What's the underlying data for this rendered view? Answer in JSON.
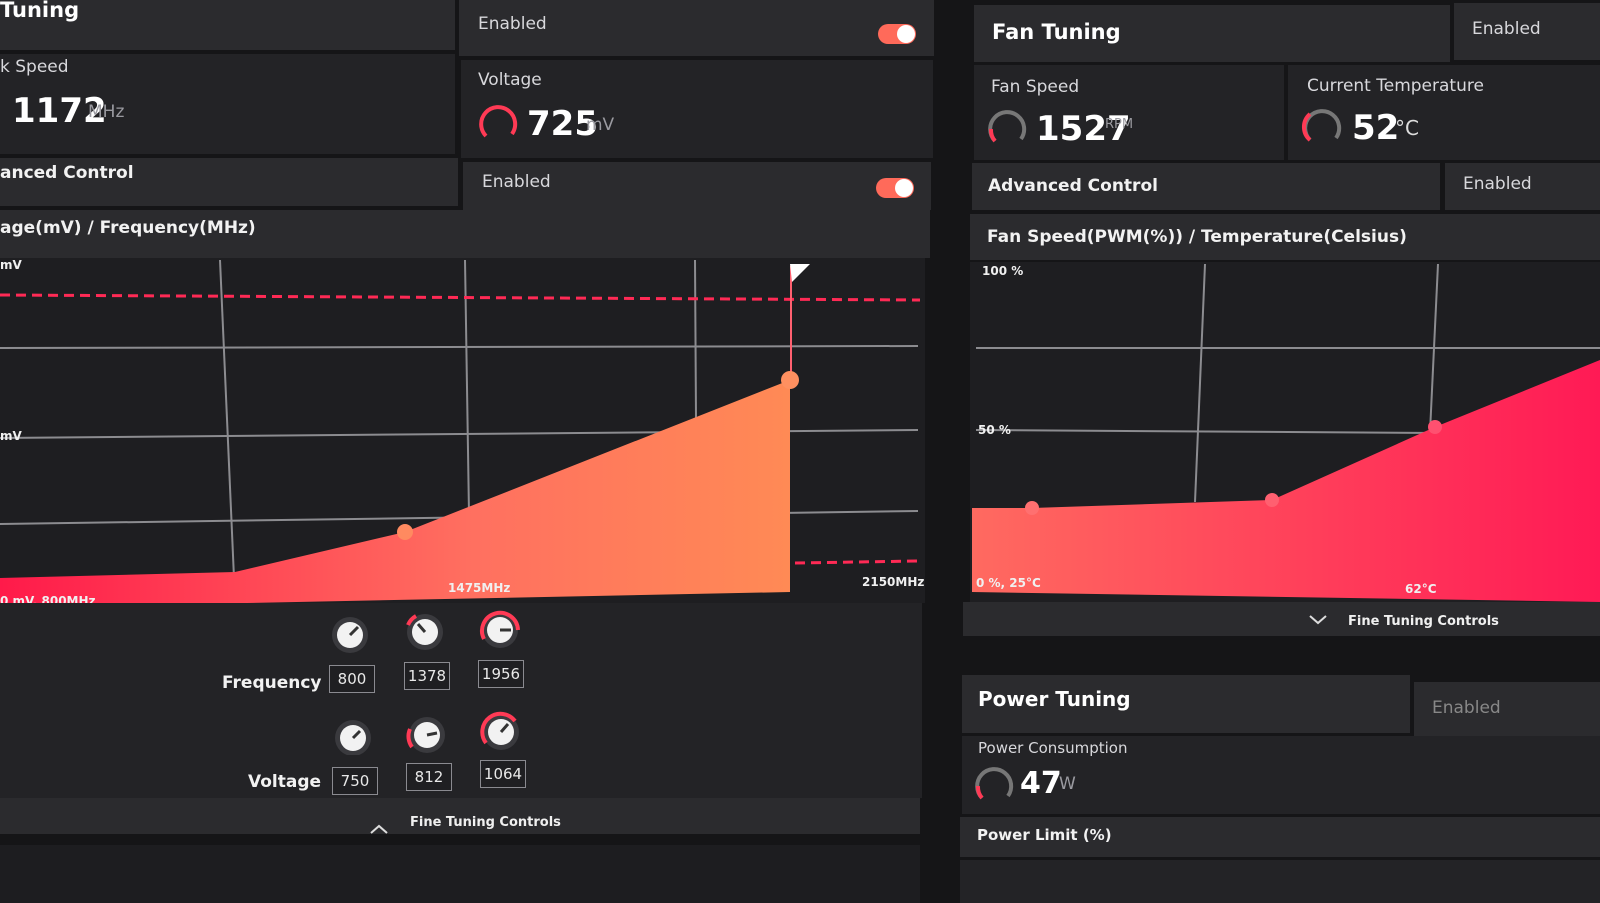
{
  "gpu": {
    "title": "Tuning",
    "status": "Enabled",
    "clock_label": "k Speed",
    "clock_value": 1172,
    "clock_unit": "MHz",
    "voltage_label": "Voltage",
    "voltage_value": 725,
    "voltage_unit": "mV",
    "advanced_label": "anced Control",
    "advanced_status": "Enabled",
    "chart_title": "age(mV) / Frequency(MHz)",
    "chart_labels": {
      "y_top": "mV",
      "y_mid": "mV",
      "x_origin": "0 mV, 800MHz",
      "x_mid": "1475MHz",
      "x_max": "2150MHz"
    },
    "frequency_label": "Frequency",
    "frequency_states": [
      800,
      1378,
      1956
    ],
    "voltage_row_label": "Voltage",
    "voltage_states": [
      750,
      812,
      1064
    ],
    "fine_tuning": "Fine Tuning Controls"
  },
  "fan": {
    "title": "Fan Tuning",
    "status": "Enabled",
    "speed_label": "Fan Speed",
    "speed_value": 1527,
    "speed_unit": "RPM",
    "temp_label": "Current Temperature",
    "temp_value": 52,
    "temp_unit": "°C",
    "advanced_label": "Advanced Control",
    "advanced_status": "Enabled",
    "chart_title": "Fan Speed(PWM(%)) / Temperature(Celsius)",
    "chart_labels": {
      "y_top": "100 %",
      "y_mid": "50 %",
      "x_origin": "0 %, 25°C",
      "x_mid": "62°C"
    },
    "fine_tuning": "Fine Tuning Controls"
  },
  "power": {
    "title": "Power Tuning",
    "status": "Enabled",
    "consumption_label": "Power Consumption",
    "consumption_value": 47,
    "consumption_unit": "W",
    "limit_label": "Power Limit (%)"
  }
}
